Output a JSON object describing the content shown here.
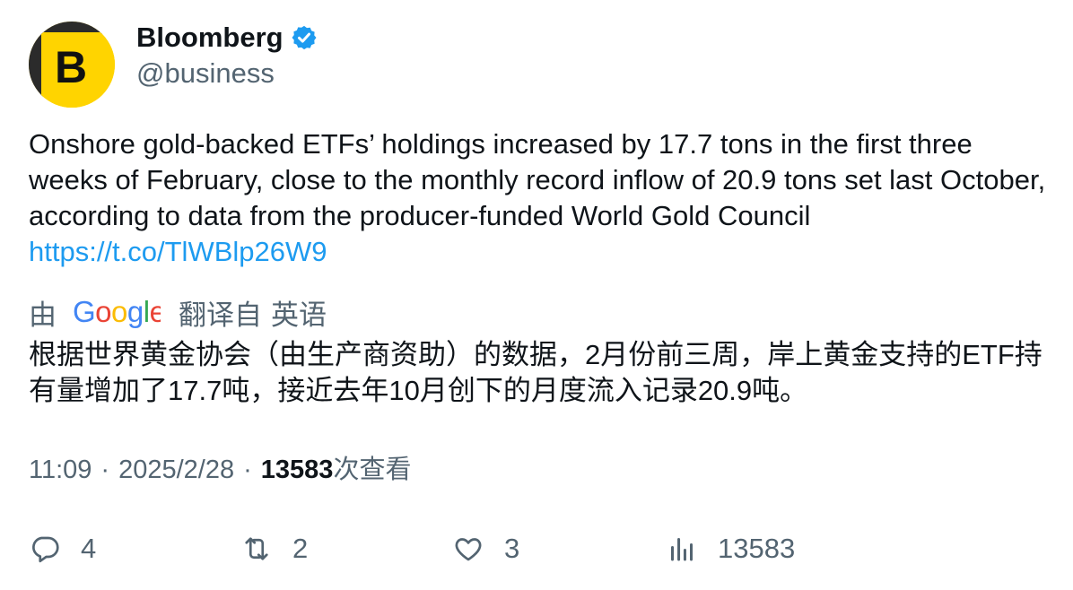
{
  "author": {
    "display_name": "Bloomberg",
    "handle": "@business",
    "avatar_letter": "B",
    "verified": true,
    "avatar_color": "#ffcc00"
  },
  "tweet": {
    "text": "Onshore gold-backed ETFs’ holdings increased by 17.7 tons in the first three weeks of February, close to the monthly record inflow of 20.9 tons set last October, according to data from the producer-funded World Gold Council",
    "link": "https://t.co/TlWBlp26W9"
  },
  "translation": {
    "by_label": "由",
    "provider": "Google",
    "from_label": "翻译自",
    "language": "英语",
    "text": "根据世界黄金协会（由生产商资助）的数据，2月份前三周，岸上黄金支持的ETF持有量增加了17.7吨，接近去年10月创下的月度流入记录20.9吨。"
  },
  "meta": {
    "time": "11:09",
    "date": "2025/2/28",
    "separator": "·",
    "views": "13583",
    "views_label": "次查看"
  },
  "actions": {
    "reply_count": "4",
    "retweet_count": "2",
    "like_count": "3",
    "views_count": "13583"
  },
  "colors": {
    "text": "#0f1419",
    "secondary": "#536471",
    "link": "#1d9bf0",
    "verified": "#1d9bf0"
  }
}
